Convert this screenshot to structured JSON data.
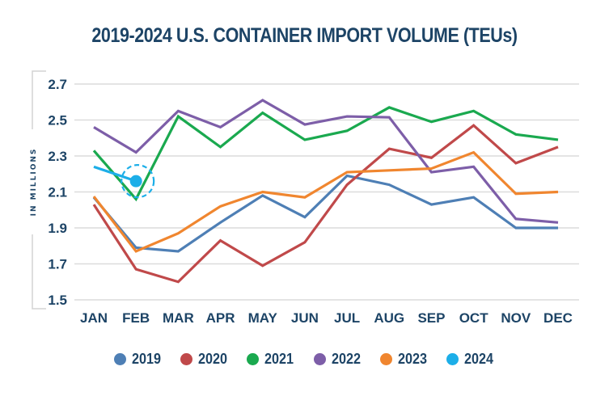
{
  "chart_data": {
    "type": "line",
    "title": "2019-2024 U.S. CONTAINER IMPORT VOLUME (TEUs)",
    "xlabel": "",
    "ylabel": "IN MILLIONS",
    "ylim": [
      1.5,
      2.7
    ],
    "yticks": [
      "2.7",
      "2.5",
      "2.3",
      "2.1",
      "1.9",
      "1.7",
      "1.5"
    ],
    "ytick_values": [
      2.7,
      2.5,
      2.3,
      2.1,
      1.9,
      1.7,
      1.5
    ],
    "grid": true,
    "legend_position": "bottom",
    "categories": [
      "JAN",
      "FEB",
      "MAR",
      "APR",
      "MAY",
      "JUN",
      "JUL",
      "AUG",
      "SEP",
      "OCT",
      "NOV",
      "DEC"
    ],
    "series": [
      {
        "name": "2019",
        "color": "#4e7fb5",
        "values": [
          2.07,
          1.79,
          1.77,
          1.93,
          2.08,
          1.96,
          2.19,
          2.14,
          2.03,
          2.07,
          1.9,
          1.9
        ]
      },
      {
        "name": "2020",
        "color": "#c0494a",
        "values": [
          2.03,
          1.67,
          1.6,
          1.83,
          1.69,
          1.82,
          2.14,
          2.34,
          2.29,
          2.47,
          2.26,
          2.35
        ]
      },
      {
        "name": "2021",
        "color": "#1aa94f",
        "values": [
          2.33,
          2.06,
          2.52,
          2.35,
          2.54,
          2.39,
          2.44,
          2.57,
          2.49,
          2.55,
          2.42,
          2.39
        ]
      },
      {
        "name": "2022",
        "color": "#7d5ea8",
        "values": [
          2.46,
          2.32,
          2.55,
          2.46,
          2.61,
          2.475,
          2.52,
          2.515,
          2.21,
          2.24,
          1.95,
          1.93
        ]
      },
      {
        "name": "2023",
        "color": "#f0862f",
        "values": [
          2.075,
          1.77,
          1.87,
          2.02,
          2.1,
          2.07,
          2.21,
          2.22,
          2.23,
          2.32,
          2.09,
          2.1
        ]
      },
      {
        "name": "2024",
        "color": "#1caee8",
        "values": [
          2.24,
          2.16,
          null,
          null,
          null,
          null,
          null,
          null,
          null,
          null,
          null,
          null
        ],
        "highlight_index": 1
      }
    ]
  }
}
